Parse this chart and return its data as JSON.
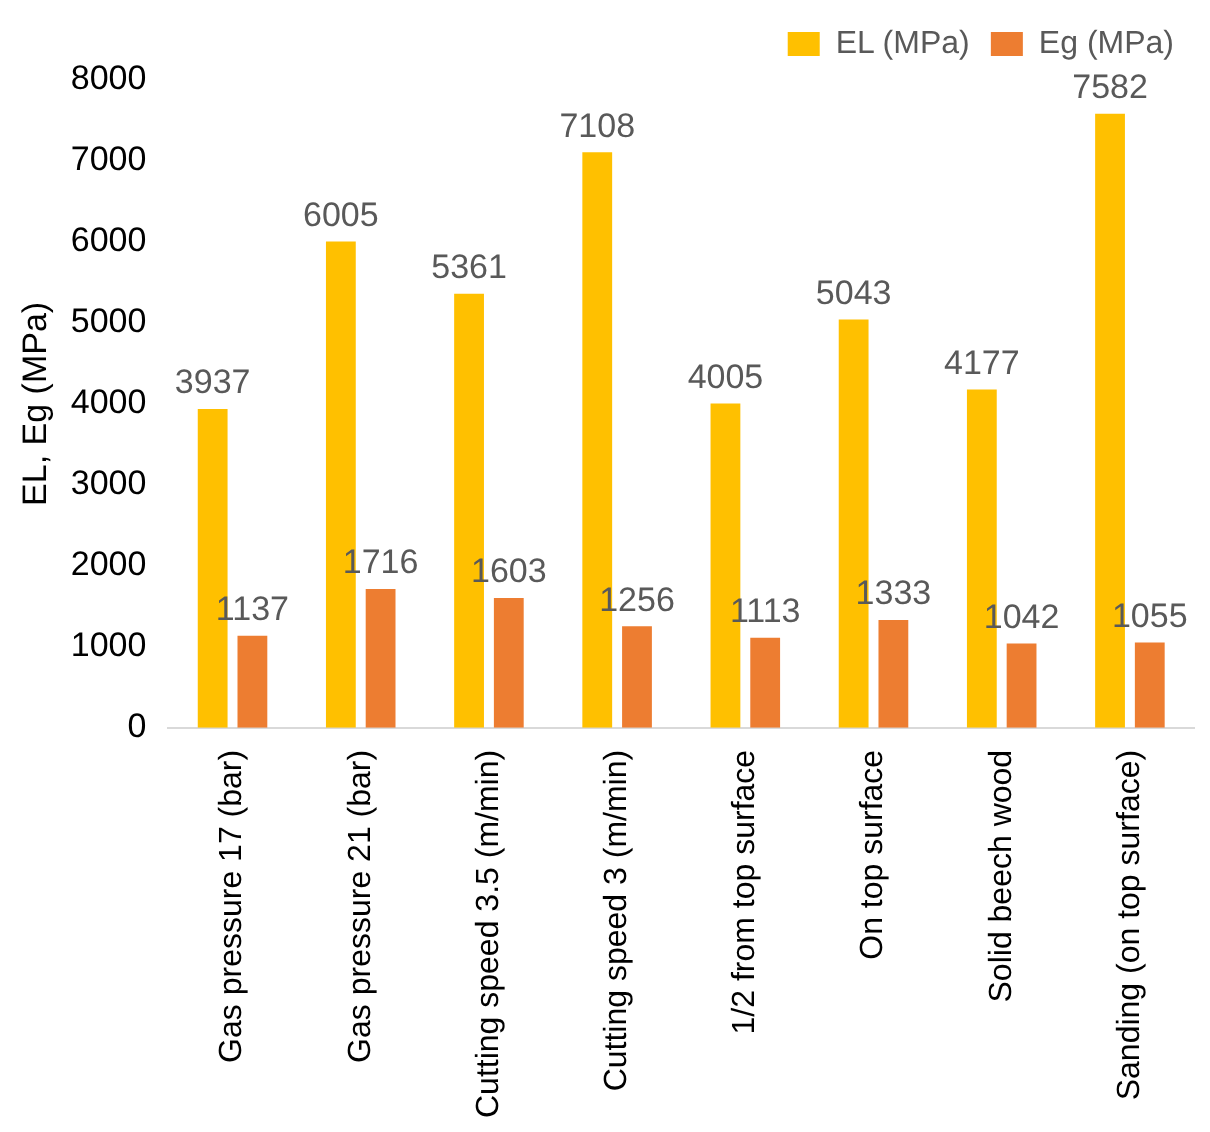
{
  "chart_data": {
    "type": "bar",
    "ylabel": "EL, Eg (MPa)",
    "categories": [
      "Gas pressure 17 (bar)",
      "Gas pressure 21 (bar)",
      "Cutting speed 3.5 (m/min)",
      "Cutting speed 3 (m/min)",
      "1/2 from top surface",
      "On top surface",
      "Solid beech wood",
      "Sanding (on top surface)"
    ],
    "series": [
      {
        "name": "EL (MPa)",
        "color": "#ffc000",
        "values": [
          3937,
          6005,
          5361,
          7108,
          4005,
          5043,
          4177,
          7582
        ]
      },
      {
        "name": "Eg (MPa)",
        "color": "#ed7d31",
        "values": [
          1137,
          1716,
          1603,
          1256,
          1113,
          1333,
          1042,
          1055
        ]
      }
    ],
    "ylim": [
      0,
      8000
    ],
    "yticks": [
      0,
      1000,
      2000,
      3000,
      4000,
      5000,
      6000,
      7000,
      8000
    ],
    "grid": false,
    "legend": "top right",
    "data_labels": true
  }
}
